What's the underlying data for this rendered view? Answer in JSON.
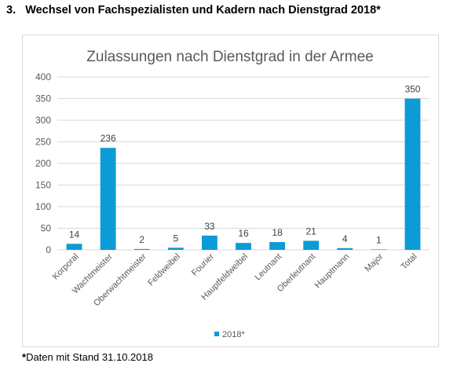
{
  "section": {
    "number": "3.",
    "title": "Wechsel von Fachspezialisten und Kadern nach Dienstgrad 2018*"
  },
  "footnote": {
    "star": "*",
    "text": "Daten mit Stand 31.10.2018"
  },
  "chart_data": {
    "type": "bar",
    "title": "Zulassungen nach Dienstgrad in der Armee",
    "categories": [
      "Korporal",
      "Wachtmeister",
      "Oberwachtmeister",
      "Feldweibel",
      "Fourier",
      "Hauptfeldweibel",
      "Leutnant",
      "Oberleutnant",
      "Hauptmann",
      "Major",
      "Total"
    ],
    "series": [
      {
        "name": "2018*",
        "values": [
          14,
          236,
          2,
          5,
          33,
          16,
          18,
          21,
          4,
          1,
          350
        ]
      }
    ],
    "xlabel": "",
    "ylabel": "",
    "ylim": [
      0,
      400
    ],
    "yticks": [
      0,
      50,
      100,
      150,
      200,
      250,
      300,
      350,
      400
    ],
    "grid": true,
    "data_labels": true,
    "legend_position": "bottom",
    "colors": {
      "bar": "#0b9bd6",
      "grid": "#d9d9d9",
      "axis_text": "#595959",
      "title_text": "#595959"
    }
  }
}
